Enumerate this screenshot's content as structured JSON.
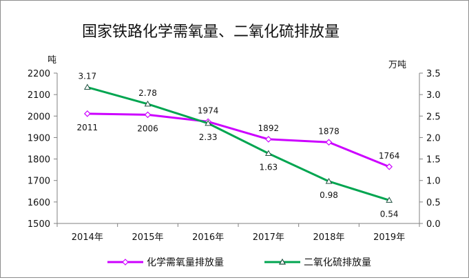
{
  "chart_data": {
    "type": "line",
    "title": "国家铁路化学需氧量、二氧化硫排放量",
    "categories": [
      "2014年",
      "2015年",
      "2016年",
      "2017年",
      "2018年",
      "2019年"
    ],
    "y_left": {
      "unit": "吨",
      "range": [
        1500,
        2200
      ],
      "ticks": [
        1500,
        1600,
        1700,
        1800,
        1900,
        2000,
        2100,
        2200
      ],
      "tick_labels": [
        "1500",
        "1600",
        "1700",
        "1800",
        "1900",
        "2000",
        "2100",
        "2200"
      ]
    },
    "y_right": {
      "unit": "万吨",
      "range": [
        0,
        3.5
      ],
      "ticks": [
        0,
        0.5,
        1.0,
        1.5,
        2.0,
        2.5,
        3.0,
        3.5
      ],
      "tick_labels": [
        "0.0",
        "0.5",
        "1.0",
        "1.5",
        "2.0",
        "2.5",
        "3.0",
        "3.5"
      ]
    },
    "series": [
      {
        "name": "化学需氧量排放量",
        "axis": "left",
        "color": "#cc00ff",
        "marker": "diamond",
        "values": [
          2011,
          2006,
          1974,
          1892,
          1878,
          1764
        ],
        "labels": [
          "2011",
          "2006",
          "1974",
          "1892",
          "1878",
          "1764"
        ],
        "label_position": [
          "below",
          "below",
          "above",
          "above",
          "above",
          "above"
        ]
      },
      {
        "name": "二氧化硫排放量",
        "axis": "right",
        "color": "#00a550",
        "marker": "triangle",
        "values": [
          3.17,
          2.78,
          2.33,
          1.63,
          0.98,
          0.54
        ],
        "labels": [
          "3.17",
          "2.78",
          "2.33",
          "1.63",
          "0.98",
          "0.54"
        ],
        "label_position": [
          "above",
          "above",
          "below",
          "below",
          "below",
          "below"
        ]
      }
    ],
    "grid": false,
    "legend": "bottom"
  }
}
